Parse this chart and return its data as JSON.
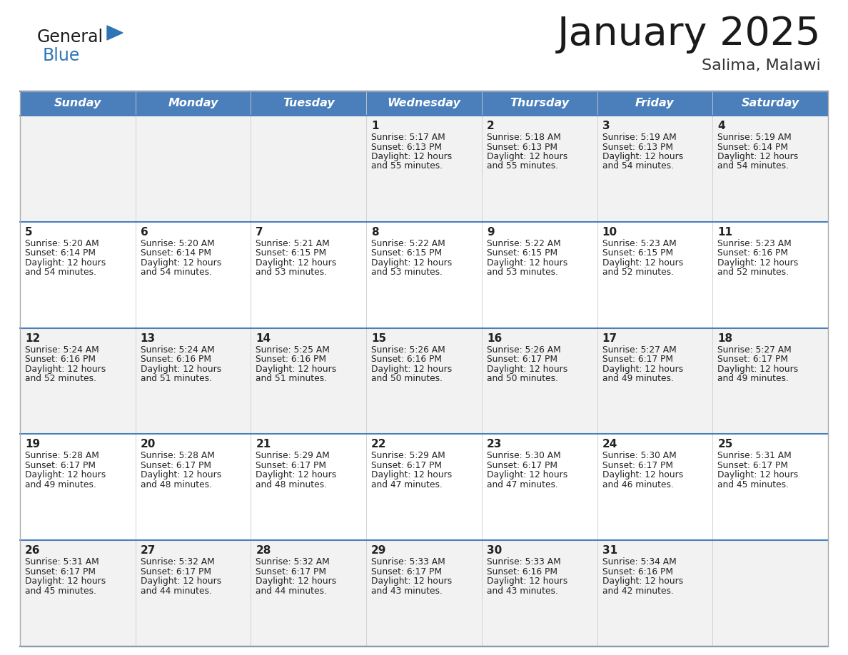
{
  "title": "January 2025",
  "subtitle": "Salima, Malawi",
  "days_of_week": [
    "Sunday",
    "Monday",
    "Tuesday",
    "Wednesday",
    "Thursday",
    "Friday",
    "Saturday"
  ],
  "header_bg_color": "#4a7fbb",
  "header_text_color": "#ffffff",
  "row_bg_light": "#f2f2f2",
  "row_bg_white": "#ffffff",
  "cell_text_color": "#222222",
  "grid_line_color": "#4a7fbb",
  "title_color": "#1a1a1a",
  "subtitle_color": "#333333",
  "logo_general_color": "#1a1a1a",
  "logo_blue_color": "#2e75b6",
  "calendar_data": [
    [
      null,
      null,
      null,
      {
        "day": 1,
        "sunrise": "5:17 AM",
        "sunset": "6:13 PM",
        "daylight_line2": "and 55 minutes."
      },
      {
        "day": 2,
        "sunrise": "5:18 AM",
        "sunset": "6:13 PM",
        "daylight_line2": "and 55 minutes."
      },
      {
        "day": 3,
        "sunrise": "5:19 AM",
        "sunset": "6:13 PM",
        "daylight_line2": "and 54 minutes."
      },
      {
        "day": 4,
        "sunrise": "5:19 AM",
        "sunset": "6:14 PM",
        "daylight_line2": "and 54 minutes."
      }
    ],
    [
      {
        "day": 5,
        "sunrise": "5:20 AM",
        "sunset": "6:14 PM",
        "daylight_line2": "and 54 minutes."
      },
      {
        "day": 6,
        "sunrise": "5:20 AM",
        "sunset": "6:14 PM",
        "daylight_line2": "and 54 minutes."
      },
      {
        "day": 7,
        "sunrise": "5:21 AM",
        "sunset": "6:15 PM",
        "daylight_line2": "and 53 minutes."
      },
      {
        "day": 8,
        "sunrise": "5:22 AM",
        "sunset": "6:15 PM",
        "daylight_line2": "and 53 minutes."
      },
      {
        "day": 9,
        "sunrise": "5:22 AM",
        "sunset": "6:15 PM",
        "daylight_line2": "and 53 minutes."
      },
      {
        "day": 10,
        "sunrise": "5:23 AM",
        "sunset": "6:15 PM",
        "daylight_line2": "and 52 minutes."
      },
      {
        "day": 11,
        "sunrise": "5:23 AM",
        "sunset": "6:16 PM",
        "daylight_line2": "and 52 minutes."
      }
    ],
    [
      {
        "day": 12,
        "sunrise": "5:24 AM",
        "sunset": "6:16 PM",
        "daylight_line2": "and 52 minutes."
      },
      {
        "day": 13,
        "sunrise": "5:24 AM",
        "sunset": "6:16 PM",
        "daylight_line2": "and 51 minutes."
      },
      {
        "day": 14,
        "sunrise": "5:25 AM",
        "sunset": "6:16 PM",
        "daylight_line2": "and 51 minutes."
      },
      {
        "day": 15,
        "sunrise": "5:26 AM",
        "sunset": "6:16 PM",
        "daylight_line2": "and 50 minutes."
      },
      {
        "day": 16,
        "sunrise": "5:26 AM",
        "sunset": "6:17 PM",
        "daylight_line2": "and 50 minutes."
      },
      {
        "day": 17,
        "sunrise": "5:27 AM",
        "sunset": "6:17 PM",
        "daylight_line2": "and 49 minutes."
      },
      {
        "day": 18,
        "sunrise": "5:27 AM",
        "sunset": "6:17 PM",
        "daylight_line2": "and 49 minutes."
      }
    ],
    [
      {
        "day": 19,
        "sunrise": "5:28 AM",
        "sunset": "6:17 PM",
        "daylight_line2": "and 49 minutes."
      },
      {
        "day": 20,
        "sunrise": "5:28 AM",
        "sunset": "6:17 PM",
        "daylight_line2": "and 48 minutes."
      },
      {
        "day": 21,
        "sunrise": "5:29 AM",
        "sunset": "6:17 PM",
        "daylight_line2": "and 48 minutes."
      },
      {
        "day": 22,
        "sunrise": "5:29 AM",
        "sunset": "6:17 PM",
        "daylight_line2": "and 47 minutes."
      },
      {
        "day": 23,
        "sunrise": "5:30 AM",
        "sunset": "6:17 PM",
        "daylight_line2": "and 47 minutes."
      },
      {
        "day": 24,
        "sunrise": "5:30 AM",
        "sunset": "6:17 PM",
        "daylight_line2": "and 46 minutes."
      },
      {
        "day": 25,
        "sunrise": "5:31 AM",
        "sunset": "6:17 PM",
        "daylight_line2": "and 45 minutes."
      }
    ],
    [
      {
        "day": 26,
        "sunrise": "5:31 AM",
        "sunset": "6:17 PM",
        "daylight_line2": "and 45 minutes."
      },
      {
        "day": 27,
        "sunrise": "5:32 AM",
        "sunset": "6:17 PM",
        "daylight_line2": "and 44 minutes."
      },
      {
        "day": 28,
        "sunrise": "5:32 AM",
        "sunset": "6:17 PM",
        "daylight_line2": "and 44 minutes."
      },
      {
        "day": 29,
        "sunrise": "5:33 AM",
        "sunset": "6:17 PM",
        "daylight_line2": "and 43 minutes."
      },
      {
        "day": 30,
        "sunrise": "5:33 AM",
        "sunset": "6:16 PM",
        "daylight_line2": "and 43 minutes."
      },
      {
        "day": 31,
        "sunrise": "5:34 AM",
        "sunset": "6:16 PM",
        "daylight_line2": "and 42 minutes."
      },
      null
    ]
  ]
}
